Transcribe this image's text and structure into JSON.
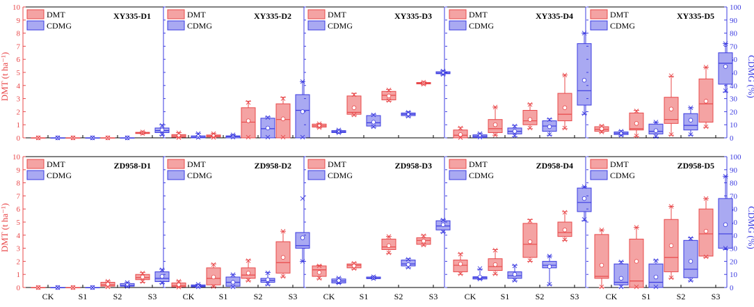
{
  "chart_data": {
    "type": "box",
    "y_left_label": "DMT (t ha⁻¹)",
    "y_right_label": "CDMG (%)",
    "y_left_range": [
      0,
      10
    ],
    "y_right_range": [
      0,
      100
    ],
    "y_left_ticks": [
      "0",
      "1",
      "2",
      "3",
      "4",
      "5",
      "6",
      "7",
      "8",
      "9",
      "10"
    ],
    "y_right_ticks": [
      "0",
      "10",
      "20",
      "30",
      "40",
      "50",
      "60",
      "70",
      "80",
      "90",
      "100"
    ],
    "categories": [
      "CK",
      "S1",
      "S2",
      "S3"
    ],
    "legend": [
      "DMT",
      "CDMG"
    ],
    "colors": {
      "dmt_fill": "#f4a3a3",
      "dmt_stroke": "#e8484a",
      "cdmg_fill": "#a9a9f2",
      "cdmg_stroke": "#3b3be0",
      "left_axis": "#e8484a",
      "right_axis": "#3b3be0"
    },
    "panels": [
      {
        "title": "XY335-D1",
        "dmt": [
          [
            0,
            0,
            0,
            0,
            0,
            0,
            0,
            0
          ],
          [
            0,
            0,
            0,
            0,
            0,
            0,
            0,
            0
          ],
          [
            0,
            0,
            0,
            0,
            0,
            0,
            0,
            0
          ],
          [
            0.3,
            0.33,
            0.37,
            0.42,
            0.47,
            0.38,
            0.32,
            0.45
          ]
        ],
        "cdmg": [
          [
            0,
            0,
            0,
            0,
            0,
            0,
            0,
            0
          ],
          [
            0,
            0,
            0,
            0,
            0,
            0,
            0,
            0
          ],
          [
            0,
            0,
            0,
            0,
            0,
            0,
            0,
            0
          ],
          [
            2,
            4,
            5.5,
            7.5,
            10,
            6,
            2.5,
            9.5
          ]
        ]
      },
      {
        "title": "XY335-D2",
        "dmt": [
          [
            0,
            0.05,
            0.15,
            0.25,
            0.4,
            0.15,
            0.02,
            0.38
          ],
          [
            0,
            0.07,
            0.15,
            0.22,
            0.35,
            0.17,
            0.03,
            0.32
          ],
          [
            0,
            0,
            1.2,
            2.3,
            2.8,
            1.3,
            0.05,
            2.7
          ],
          [
            0,
            0,
            1.4,
            2.6,
            3.1,
            1.45,
            0.05,
            3.0
          ]
        ],
        "cdmg": [
          [
            0,
            0,
            0.5,
            1.5,
            3.5,
            1.0,
            0.3,
            3.2
          ],
          [
            0,
            0,
            1.0,
            1.5,
            2.5,
            1.1,
            0.5,
            2.3
          ],
          [
            0,
            0,
            7,
            15,
            16,
            7.5,
            0.5,
            15.5
          ],
          [
            0,
            0,
            21,
            33,
            43,
            20,
            0.5,
            43
          ]
        ]
      },
      {
        "title": "XY335-D3",
        "dmt": [
          [
            0.75,
            0.82,
            0.92,
            1.05,
            1.1,
            0.95,
            0.78,
            1.08
          ],
          [
            1.7,
            1.8,
            1.95,
            3.2,
            3.4,
            2.3,
            1.75,
            3.3
          ],
          [
            2.8,
            2.9,
            3.25,
            3.55,
            3.7,
            3.2,
            2.85,
            3.65
          ],
          [
            4.05,
            4.12,
            4.17,
            4.23,
            4.28,
            4.18,
            4.1,
            4.25
          ]
        ],
        "cdmg": [
          [
            3.5,
            4.0,
            4.8,
            5.5,
            6.3,
            4.9,
            3.8,
            6.0
          ],
          [
            8,
            9,
            11.5,
            17,
            18,
            12,
            8.5,
            17.5
          ],
          [
            16,
            17,
            18,
            19,
            20,
            18.3,
            16.5,
            19.5
          ],
          [
            48,
            49,
            49.5,
            50.5,
            51.5,
            49.8,
            48.5,
            51
          ]
        ]
      },
      {
        "title": "XY335-D4",
        "dmt": [
          [
            0,
            0,
            0.2,
            0.6,
            0.8,
            0.25,
            0.02,
            0.75
          ],
          [
            0.2,
            0.4,
            0.7,
            1.4,
            2.35,
            1.0,
            0.2,
            2.35
          ],
          [
            0.7,
            1.0,
            1.3,
            2.1,
            2.6,
            1.4,
            0.75,
            2.55
          ],
          [
            0.7,
            1.3,
            1.8,
            3.4,
            4.8,
            2.3,
            0.75,
            4.8
          ]
        ],
        "cdmg": [
          [
            0,
            0.3,
            1.2,
            2.3,
            3.5,
            1.5,
            0.5,
            3.2
          ],
          [
            1,
            3,
            5,
            7.5,
            9.5,
            5,
            1.5,
            9
          ],
          [
            2,
            5,
            9,
            13,
            14.5,
            8.5,
            2.5,
            14
          ],
          [
            18,
            25,
            36,
            72,
            80,
            44,
            18.5,
            80
          ]
        ]
      },
      {
        "title": "XY335-D5",
        "dmt": [
          [
            0.4,
            0.5,
            0.65,
            0.85,
            0.95,
            0.7,
            0.45,
            0.9
          ],
          [
            0.1,
            0.6,
            0.7,
            1.9,
            2.1,
            1.1,
            0.15,
            2.05
          ],
          [
            0.2,
            1.1,
            1.4,
            3.1,
            4.7,
            2.2,
            0.25,
            4.75
          ],
          [
            0.8,
            1.2,
            2.6,
            4.5,
            5.4,
            2.8,
            0.85,
            5.4
          ]
        ],
        "cdmg": [
          [
            1.5,
            2.5,
            3.5,
            4.5,
            5.5,
            3.3,
            2,
            5
          ],
          [
            0.5,
            3,
            5,
            10.5,
            12,
            5.5,
            1,
            12
          ],
          [
            2,
            6,
            9.5,
            18.5,
            23,
            13.5,
            2.5,
            23
          ],
          [
            35,
            41,
            57,
            65,
            72,
            54.5,
            36,
            72
          ]
        ]
      },
      {
        "title": "ZD958-D1",
        "dmt": [
          [
            0,
            0,
            0,
            0,
            0,
            0,
            0,
            0
          ],
          [
            0,
            0,
            0,
            0,
            0,
            0,
            0,
            0
          ],
          [
            0,
            0.1,
            0.2,
            0.4,
            0.5,
            0.25,
            0.05,
            0.48
          ],
          [
            0.4,
            0.6,
            0.75,
            1.0,
            1.15,
            0.8,
            0.45,
            1.1
          ]
        ],
        "cdmg": [
          [
            0,
            0,
            0,
            0,
            0,
            0,
            0,
            0
          ],
          [
            0,
            0,
            0,
            0,
            0,
            0,
            0,
            0
          ],
          [
            0.5,
            1,
            1.5,
            3,
            4,
            1.8,
            0.8,
            3.8
          ],
          [
            3,
            4.5,
            7,
            12,
            14,
            8.5,
            3.5,
            13.5
          ]
        ]
      },
      {
        "title": "ZD958-D2",
        "dmt": [
          [
            0,
            0.05,
            0.15,
            0.35,
            0.5,
            0.2,
            0.03,
            0.48
          ],
          [
            0.05,
            0.2,
            0.7,
            1.5,
            1.8,
            0.8,
            0.07,
            1.75
          ],
          [
            0.5,
            0.7,
            0.95,
            1.5,
            2.1,
            1.1,
            0.55,
            2.05
          ],
          [
            0.8,
            1.1,
            1.9,
            3.5,
            4.3,
            2.3,
            0.85,
            4.3
          ]
        ],
        "cdmg": [
          [
            0,
            0.5,
            1.2,
            2,
            2.5,
            1.2,
            0.5,
            2.4
          ],
          [
            0,
            1,
            4,
            8,
            10,
            4,
            0.5,
            9.8
          ],
          [
            2,
            4,
            5.5,
            7,
            11.5,
            6,
            2.5,
            11.2
          ],
          [
            20,
            30,
            32,
            42,
            42,
            38,
            20,
            68
          ]
        ]
      },
      {
        "title": "ZD958-D3",
        "dmt": [
          [
            0.65,
            0.85,
            1.35,
            1.65,
            1.7,
            1.15,
            0.7,
            1.65
          ],
          [
            1.4,
            1.5,
            1.7,
            1.8,
            1.9,
            1.65,
            1.45,
            1.85
          ],
          [
            2.6,
            2.9,
            3.1,
            3.7,
            3.9,
            3.2,
            2.65,
            3.9
          ],
          [
            3.2,
            3.3,
            3.6,
            3.8,
            4.0,
            3.55,
            3.25,
            3.95
          ]
        ],
        "cdmg": [
          [
            3,
            3.5,
            5,
            6.5,
            7.5,
            5.3,
            3.5,
            7.2
          ],
          [
            6.5,
            6.8,
            7.2,
            8,
            8.5,
            7.5,
            6.8,
            8.2
          ],
          [
            15,
            16.5,
            18,
            21,
            22,
            17.5,
            15.5,
            21.5
          ],
          [
            42,
            44,
            47,
            51,
            52,
            48,
            42.5,
            51.5
          ]
        ]
      },
      {
        "title": "ZD958-D4",
        "dmt": [
          [
            1.0,
            1.2,
            1.7,
            2.1,
            2.6,
            1.8,
            1.05,
            2.55
          ],
          [
            1.0,
            1.3,
            1.6,
            2.2,
            2.9,
            1.75,
            1.05,
            2.85
          ],
          [
            2.0,
            2.3,
            3.3,
            4.9,
            5.2,
            3.5,
            2.05,
            5.1
          ],
          [
            3.6,
            3.9,
            4.2,
            5.0,
            5.8,
            4.4,
            3.65,
            5.75
          ]
        ],
        "cdmg": [
          [
            6,
            6.5,
            7.5,
            8.2,
            14,
            8,
            6.5,
            14.5
          ],
          [
            5,
            7,
            9,
            12,
            17,
            10,
            5.5,
            16.5
          ],
          [
            2,
            15,
            17,
            20,
            24,
            16,
            2.5,
            24
          ],
          [
            51,
            58,
            65,
            76,
            77,
            68,
            52,
            77
          ]
        ]
      },
      {
        "title": "ZD958-D5",
        "dmt": [
          [
            0,
            0.7,
            0.85,
            4.05,
            4.4,
            1.7,
            0.05,
            4.4
          ],
          [
            0,
            0,
            0.5,
            3.7,
            4.6,
            2.0,
            0.05,
            4.6
          ],
          [
            0.7,
            1.2,
            2.3,
            5.2,
            6.2,
            3.2,
            0.75,
            6.2
          ],
          [
            2.3,
            2.4,
            4.1,
            6.0,
            6.8,
            4.3,
            2.35,
            6.8
          ]
        ],
        "cdmg": [
          [
            0,
            2,
            4,
            18,
            20,
            7,
            0.5,
            19.5
          ],
          [
            0,
            0,
            4,
            18,
            21,
            8,
            0.5,
            20.5
          ],
          [
            5,
            7.5,
            14,
            36,
            38,
            20,
            5.5,
            37.5
          ],
          [
            29,
            30,
            41,
            68,
            85,
            48,
            30,
            85
          ]
        ]
      }
    ]
  }
}
